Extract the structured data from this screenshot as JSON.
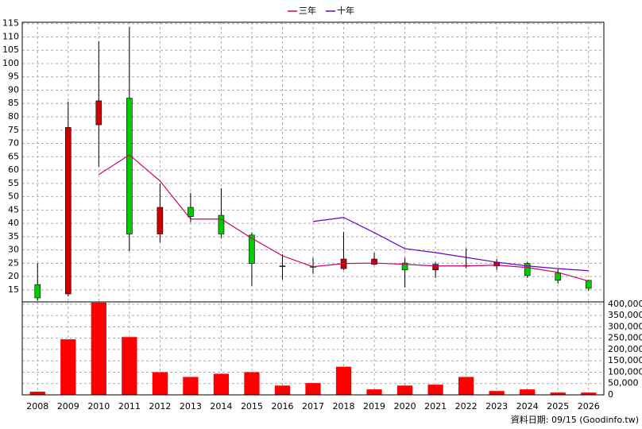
{
  "chart_data": [
    {
      "type": "candlestick",
      "categories": [
        "2008",
        "2009",
        "2010",
        "2011",
        "2012",
        "2013",
        "2014",
        "2015",
        "2016",
        "2017",
        "2018",
        "2019",
        "2020",
        "2021",
        "2022",
        "2023",
        "2024",
        "2025",
        "2026"
      ],
      "open": [
        17,
        13.5,
        77,
        87,
        36,
        46,
        43,
        35.6,
        24,
        23.8,
        23,
        24.6,
        25.1,
        22.5,
        24,
        24,
        24.9,
        21.3,
        18.6
      ],
      "close": [
        12,
        76,
        86,
        36,
        46,
        42.5,
        36,
        24.9,
        23.7,
        23.5,
        26.6,
        26.6,
        22.5,
        24.6,
        24.2,
        25.4,
        20.4,
        18.6,
        15.6
      ],
      "high": [
        25,
        85.7,
        108.4,
        113.8,
        55,
        51.4,
        53.2,
        36.5,
        28.4,
        27,
        36.8,
        29,
        27,
        25.4,
        30.5,
        26.6,
        25.4,
        22.8,
        18.6
      ],
      "low": [
        11,
        12.6,
        61.3,
        29.6,
        32.9,
        40.4,
        34.4,
        16.5,
        18.9,
        21,
        22.5,
        24.3,
        15.9,
        19.5,
        23,
        22.5,
        19.5,
        17.4,
        14.7
      ],
      "up_color": "#cc0000",
      "down_color": "#00cc00",
      "series": [
        {
          "name": "三年",
          "color": "#cc0066",
          "values": [
            null,
            null,
            58.3,
            65.7,
            55.9,
            41.6,
            41.6,
            34.4,
            27.8,
            23.7,
            24.9,
            25.1,
            24.6,
            24,
            24,
            24.3,
            23.4,
            21.6,
            18.3
          ]
        },
        {
          "name": "十年",
          "color": "#6600cc",
          "values": [
            null,
            null,
            null,
            null,
            null,
            null,
            null,
            null,
            null,
            40.7,
            42.2,
            36.5,
            30.5,
            29,
            27.2,
            25.4,
            24,
            23,
            22.2
          ]
        }
      ],
      "ylim": [
        10.5,
        115.5
      ],
      "yticks": [
        15,
        20,
        25,
        30,
        35,
        40,
        45,
        50,
        55,
        60,
        65,
        70,
        75,
        80,
        85,
        90,
        95,
        100,
        105,
        110,
        115
      ],
      "grid": true,
      "legend": "top"
    },
    {
      "type": "bar",
      "values": [
        14000,
        245000,
        407000,
        255000,
        100000,
        79000,
        93000,
        100000,
        41000,
        52000,
        124000,
        24000,
        41000,
        45000,
        79000,
        17000,
        24000,
        10000,
        10000
      ],
      "color": "#ff0000",
      "ylim": [
        0,
        410000
      ],
      "yticks": [
        0,
        {
          "value": 50000,
          "label": "50,000"
        },
        {
          "value": 100000,
          "label": "100,000"
        },
        {
          "value": 150000,
          "label": "150,000"
        },
        {
          "value": 200000,
          "label": "200,000"
        },
        {
          "value": 250000,
          "label": "250,000"
        },
        {
          "value": 300000,
          "label": "300,000"
        },
        {
          "value": 350000,
          "label": "350,000"
        },
        {
          "value": 400000,
          "label": "400,000"
        }
      ],
      "grid": true,
      "note": "資料日期: 09/15 (Goodinfo.tw)"
    }
  ]
}
